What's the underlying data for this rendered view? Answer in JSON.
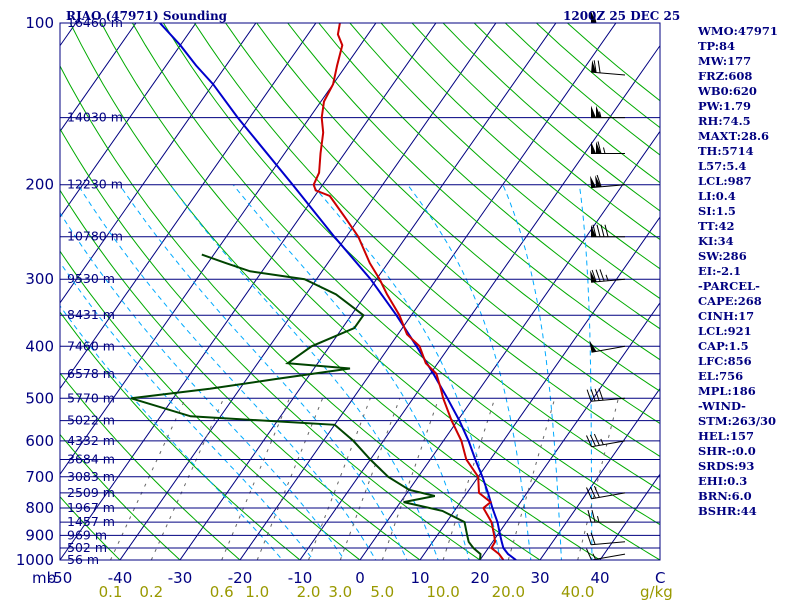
{
  "header": {
    "station": "RJAO (47971) Sounding",
    "time": "1200Z 25 DEC 25"
  },
  "colors": {
    "frame": "#000080",
    "isobar": "#000080",
    "temperature": "#cc0000",
    "dewpoint": "#004400",
    "parcel": "#0000cc",
    "dry_adiabat": "#00aa00",
    "moist_adiabat": "#00aaff",
    "mixing_ratio": "#666666",
    "axis_text": "#000080",
    "mixing_text": "#999900"
  },
  "side_panel": [
    "WMO:47971",
    "TP:84",
    "MW:177",
    "FRZ:608",
    "WB0:620",
    "PW:1.79",
    "RH:74.5",
    "MAXT:28.6",
    "TH:5714",
    "L57:5.4",
    "LCL:987",
    "LI:0.4",
    "SI:1.5",
    "TT:42",
    "KI:34",
    "SW:286",
    "EI:-2.1",
    "-PARCEL-",
    "CAPE:268",
    "CINH:17",
    "LCL:921",
    "CAP:1.5",
    "LFC:856",
    "EL:756",
    "MPL:186",
    "-WIND-",
    "STM:263/30",
    "HEL:157",
    "SHR-:0.0",
    "SRDS:93",
    "EHI:0.3",
    "BRN:6.0",
    "BSHR:44"
  ],
  "chart_data": {
    "type": "skew-t",
    "title": "RJAO (47971) Sounding",
    "pressure_range_hpa": [
      1000,
      100
    ],
    "temperature_range_c": [
      -50,
      50
    ],
    "isobars": [
      {
        "p": 100,
        "label": "100",
        "height": "16460 m"
      },
      {
        "p": 150,
        "label": "",
        "height": "14030 m"
      },
      {
        "p": 200,
        "label": "200",
        "height": "12230 m"
      },
      {
        "p": 250,
        "label": "",
        "height": "10780 m"
      },
      {
        "p": 300,
        "label": "300",
        "height": "9530 m"
      },
      {
        "p": 350,
        "label": "",
        "height": "8431 m"
      },
      {
        "p": 400,
        "label": "400",
        "height": "7460 m"
      },
      {
        "p": 450,
        "label": "",
        "height": "6578 m"
      },
      {
        "p": 500,
        "label": "500",
        "height": "5770 m"
      },
      {
        "p": 550,
        "label": "",
        "height": "5022 m"
      },
      {
        "p": 600,
        "label": "600",
        "height": "4332 m"
      },
      {
        "p": 650,
        "label": "",
        "height": "3684 m"
      },
      {
        "p": 700,
        "label": "700",
        "height": "3083 m"
      },
      {
        "p": 750,
        "label": "",
        "height": "2509 m"
      },
      {
        "p": 800,
        "label": "800",
        "height": "1967 m"
      },
      {
        "p": 850,
        "label": "",
        "height": "1457 m"
      },
      {
        "p": 900,
        "label": "900",
        "height": "969 m"
      },
      {
        "p": 950,
        "label": "",
        "height": "502 m"
      },
      {
        "p": 1000,
        "label": "1000",
        "height": "56 m"
      }
    ],
    "temperature_ticks": [
      -50,
      -40,
      -30,
      -20,
      -10,
      0,
      10,
      20,
      30,
      40
    ],
    "mb_label": "mb",
    "c_label": "C",
    "mixing_ratio_label": "g/kg",
    "mixing_ratio_ticks": [
      {
        "label": "0.1",
        "w": 0.1
      },
      {
        "label": "0.2",
        "w": 0.2
      },
      {
        "label": "0.6",
        "w": 0.6
      },
      {
        "label": "1.0",
        "w": 1.0
      },
      {
        "label": "2.0",
        "w": 2.0
      },
      {
        "label": "3.0",
        "w": 3.0
      },
      {
        "label": "5.0",
        "w": 5.0
      },
      {
        "label": "10.0",
        "w": 10.0
      },
      {
        "label": "20.0",
        "w": 20.0
      },
      {
        "label": "40.0",
        "w": 40.0
      }
    ],
    "temperature": [
      [
        1000,
        23.9
      ],
      [
        975,
        22.5
      ],
      [
        950,
        20.5
      ],
      [
        925,
        20.4
      ],
      [
        900,
        19.5
      ],
      [
        850,
        17.5
      ],
      [
        800,
        14.5
      ],
      [
        780,
        15.0
      ],
      [
        750,
        12.0
      ],
      [
        700,
        10.0
      ],
      [
        650,
        6.0
      ],
      [
        600,
        3.0
      ],
      [
        550,
        -1.0
      ],
      [
        500,
        -5.0
      ],
      [
        480,
        -6.5
      ],
      [
        450,
        -9.0
      ],
      [
        430,
        -12.0
      ],
      [
        400,
        -15.0
      ],
      [
        380,
        -18.5
      ],
      [
        350,
        -22.0
      ],
      [
        320,
        -26.5
      ],
      [
        300,
        -29.5
      ],
      [
        280,
        -33.0
      ],
      [
        250,
        -38.0
      ],
      [
        230,
        -42.5
      ],
      [
        210,
        -47.5
      ],
      [
        205,
        -50.5
      ],
      [
        200,
        -51.5
      ],
      [
        190,
        -52.0
      ],
      [
        175,
        -54.0
      ],
      [
        160,
        -56.0
      ],
      [
        150,
        -58.0
      ],
      [
        140,
        -59.5
      ],
      [
        130,
        -60.0
      ],
      [
        120,
        -61.5
      ],
      [
        110,
        -63.0
      ],
      [
        105,
        -65.0
      ],
      [
        100,
        -66.0
      ]
    ],
    "dewpoint": [
      [
        1000,
        20.0
      ],
      [
        975,
        19.4
      ],
      [
        950,
        17.5
      ],
      [
        925,
        16.0
      ],
      [
        900,
        15.0
      ],
      [
        850,
        13.0
      ],
      [
        810,
        8.0
      ],
      [
        780,
        0.5
      ],
      [
        760,
        5.0
      ],
      [
        740,
        0.0
      ],
      [
        700,
        -5.0
      ],
      [
        650,
        -10.0
      ],
      [
        600,
        -15.0
      ],
      [
        560,
        -20.0
      ],
      [
        540,
        -45.0
      ],
      [
        500,
        -57.0
      ],
      [
        480,
        -45.0
      ],
      [
        460,
        -35.0
      ],
      [
        440,
        -24.0
      ],
      [
        430,
        -35.0
      ],
      [
        400,
        -33.0
      ],
      [
        370,
        -28.0
      ],
      [
        350,
        -28.0
      ],
      [
        320,
        -35.0
      ],
      [
        300,
        -42.0
      ],
      [
        290,
        -52.0
      ],
      [
        280,
        -57.0
      ],
      [
        270,
        -62.0
      ]
    ],
    "parcel": [
      [
        1000,
        26.0
      ],
      [
        975,
        24.0
      ],
      [
        950,
        22.5
      ],
      [
        925,
        21.5
      ],
      [
        900,
        20.5
      ],
      [
        850,
        18.5
      ],
      [
        800,
        16.0
      ],
      [
        750,
        13.5
      ],
      [
        700,
        10.7
      ],
      [
        650,
        7.5
      ],
      [
        600,
        4.2
      ],
      [
        550,
        0.3
      ],
      [
        500,
        -4.3
      ],
      [
        450,
        -9.5
      ],
      [
        400,
        -15.5
      ],
      [
        350,
        -22.5
      ],
      [
        300,
        -31.0
      ],
      [
        250,
        -42.0
      ],
      [
        200,
        -55.0
      ],
      [
        150,
        -72.0
      ],
      [
        130,
        -80.0
      ],
      [
        120,
        -85.0
      ],
      [
        110,
        -90.0
      ],
      [
        100,
        -96.0
      ]
    ],
    "wind_barbs": [
      {
        "p": 975,
        "dir": 260,
        "spd": 15
      },
      {
        "p": 925,
        "dir": 265,
        "spd": 20
      },
      {
        "p": 850,
        "dir": 270,
        "spd": 25
      },
      {
        "p": 750,
        "dir": 260,
        "spd": 30
      },
      {
        "p": 600,
        "dir": 260,
        "spd": 35
      },
      {
        "p": 500,
        "dir": 265,
        "spd": 40
      },
      {
        "p": 400,
        "dir": 260,
        "spd": 50
      },
      {
        "p": 300,
        "dir": 265,
        "spd": 85
      },
      {
        "p": 250,
        "dir": 270,
        "spd": 90
      },
      {
        "p": 200,
        "dir": 265,
        "spd": 110
      },
      {
        "p": 175,
        "dir": 270,
        "spd": 115
      },
      {
        "p": 150,
        "dir": 270,
        "spd": 105
      },
      {
        "p": 125,
        "dir": 275,
        "spd": 70
      },
      {
        "p": 100,
        "dir": 270,
        "spd": 60
      }
    ]
  }
}
